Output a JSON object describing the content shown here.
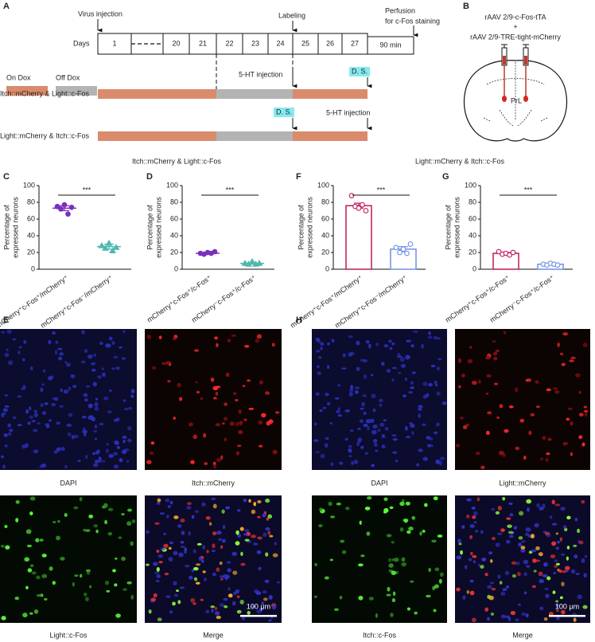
{
  "panel_labels": [
    "A",
    "B",
    "C",
    "D",
    "E",
    "F",
    "G",
    "H"
  ],
  "timeline": {
    "virus_injection": "Virus injection",
    "labeling": "Labeling",
    "perfusion": [
      "Perfusion",
      "for c-Fos staining"
    ],
    "days_label": "Days",
    "days": [
      "1",
      "20",
      "21",
      "22",
      "23",
      "24",
      "25",
      "26",
      "27"
    ],
    "final": "90 min"
  },
  "legend": {
    "on": "On Dox",
    "off": "Off Dox"
  },
  "protocols": [
    {
      "name": "Itch::mCherry & Light::c-Fos",
      "first": "5-HT injection",
      "second": "D. S."
    },
    {
      "name": "Light::mCherry & Itch::c-Fos",
      "first": "D. S.",
      "second": "5-HT injection"
    }
  ],
  "virus": [
    "rAAV 2/9-c-Fos-tTA",
    "+",
    "rAAV 2/9-TRE-tight-mCherry"
  ],
  "region": "PrL",
  "group_titles": [
    "Itch::mCherry & Light::c-Fos",
    "Light::mCherry & Itch::c-Fos"
  ],
  "chart_data": [
    {
      "type": "dot",
      "categories": [
        "mCherry⁺c-Fos⁺/mCherry⁺",
        "mCherry⁺c-Fos⁻/mCherry⁺"
      ],
      "values": [
        73,
        27
      ],
      "errors": [
        3,
        3
      ],
      "points": [
        [
          75,
          72,
          77,
          66,
          74
        ],
        [
          28,
          25,
          31,
          22,
          26
        ]
      ],
      "markers": [
        "circle",
        "triangle"
      ],
      "filled": true,
      "colors": [
        "#7b2fbe",
        "#4fb8b0"
      ],
      "ylim": [
        0,
        100
      ],
      "yticks": [
        0,
        20,
        40,
        60,
        80,
        100
      ],
      "ylabel": [
        "Percentage of",
        "expressed neurons"
      ],
      "significance": "***"
    },
    {
      "type": "dot",
      "categories": [
        "mCherry⁺c-Fos⁺/c-Fos⁺",
        "mCherry⁻c-Fos⁺/c-Fos⁺"
      ],
      "values": [
        19,
        7
      ],
      "errors": [
        1,
        1
      ],
      "points": [
        [
          19,
          18,
          20,
          19,
          21
        ],
        [
          7,
          6,
          9,
          6,
          7
        ]
      ],
      "markers": [
        "circle",
        "triangle"
      ],
      "filled": true,
      "colors": [
        "#7b2fbe",
        "#4fb8b0"
      ],
      "ylim": [
        0,
        100
      ],
      "yticks": [
        0,
        20,
        40,
        60,
        80,
        100
      ],
      "ylabel": [
        "Percentage of",
        "expressed neurons"
      ],
      "significance": "***"
    },
    {
      "type": "bar",
      "categories": [
        "mCherry⁺c-Fos⁺/mCherry⁺",
        "mCherry⁺c-Fos⁻/mCherry⁺"
      ],
      "values": [
        76,
        24
      ],
      "errors": [
        3,
        3
      ],
      "points": [
        [
          88,
          75,
          73,
          77,
          70
        ],
        [
          26,
          20,
          24,
          19,
          30
        ]
      ],
      "markers": [
        "circle",
        "circle"
      ],
      "filled": false,
      "colors": [
        "#c2185b",
        "#6f8fe6"
      ],
      "ylim": [
        0,
        100
      ],
      "yticks": [
        0,
        20,
        40,
        60,
        80,
        100
      ],
      "ylabel": [
        "Percentage of",
        "expressed neurons"
      ],
      "significance": "***"
    },
    {
      "type": "bar",
      "categories": [
        "mCherry⁺c-Fos⁺/c-Fos⁺",
        "mCherry⁻c-Fos⁺/c-Fos⁺"
      ],
      "values": [
        19,
        6
      ],
      "errors": [
        1,
        1
      ],
      "points": [
        [
          21,
          18,
          19,
          17,
          20
        ],
        [
          6,
          5,
          7,
          6,
          5
        ]
      ],
      "markers": [
        "circle",
        "circle"
      ],
      "filled": false,
      "colors": [
        "#c2185b",
        "#6f8fe6"
      ],
      "ylim": [
        0,
        100
      ],
      "yticks": [
        0,
        20,
        40,
        60,
        80,
        100
      ],
      "ylabel": [
        "Percentage of",
        "expressed neurons"
      ],
      "significance": "***"
    }
  ],
  "images": [
    {
      "caption": "DAPI"
    },
    {
      "caption": "Itch::mCherry"
    },
    {
      "caption": "Light::c-Fos"
    },
    {
      "caption": "Merge"
    },
    {
      "caption": "DAPI"
    },
    {
      "caption": "Light::mCherry"
    },
    {
      "caption": "Itch::c-Fos"
    },
    {
      "caption": "Merge"
    }
  ],
  "scale_bar": "100 μm"
}
